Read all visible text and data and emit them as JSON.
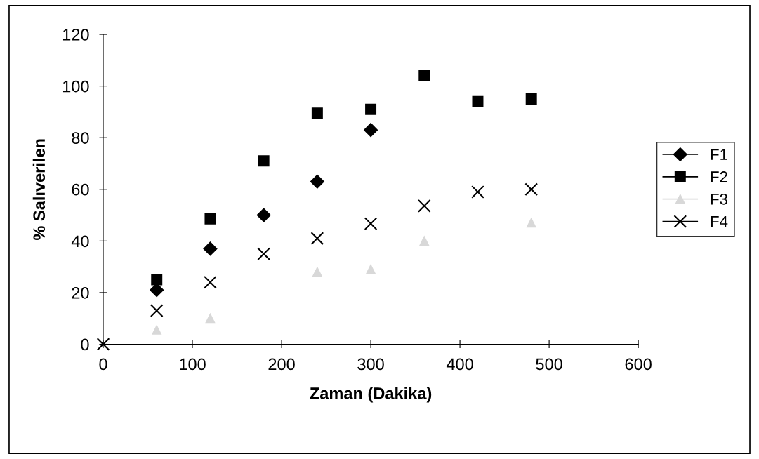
{
  "chart_data": {
    "type": "scatter",
    "xlabel": "Zaman (Dakika)",
    "ylabel": "% Salıverilen",
    "x": [
      0,
      60,
      120,
      180,
      240,
      300,
      360,
      420,
      480
    ],
    "xlim": [
      0,
      600
    ],
    "xticks": [
      0,
      100,
      200,
      300,
      400,
      500,
      600
    ],
    "ylim": [
      0,
      120
    ],
    "yticks": [
      0,
      20,
      40,
      60,
      80,
      100,
      120
    ],
    "grid": false,
    "legend": "right",
    "series": [
      {
        "name": "F1",
        "color": "#000000",
        "marker": "diamond",
        "values": [
          null,
          21,
          37,
          50,
          63,
          83,
          null,
          null,
          null
        ]
      },
      {
        "name": "F2",
        "color": "#000000",
        "marker": "square",
        "values": [
          null,
          25,
          48.6,
          71,
          89.5,
          91,
          104,
          94,
          95
        ]
      },
      {
        "name": "F3",
        "color": "#d8d8d8",
        "marker": "triangle",
        "values": [
          null,
          5.5,
          10,
          null,
          28,
          29,
          40,
          null,
          47
        ]
      },
      {
        "name": "F4",
        "color": "#000000",
        "marker": "cross",
        "values": [
          0,
          13,
          24,
          35,
          41,
          46.7,
          53.6,
          59,
          60
        ]
      }
    ]
  }
}
